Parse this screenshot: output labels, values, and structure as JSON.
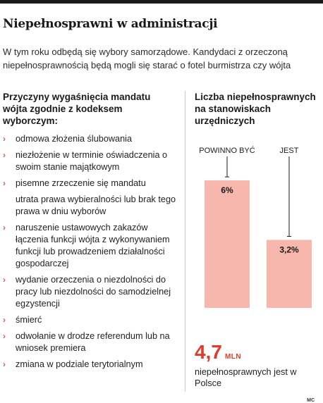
{
  "header": {
    "title": "Niepełnosprawni w administracji",
    "lead": "W tym roku odbędą się wybory samorządowe. Kandydaci z orzeczoną niepełnosprawnością będą mogli się starać o fotel burmistrza czy wójta"
  },
  "reasons": {
    "heading": "Przyczyny wygaśnięcia mandatu wójta zgodnie z kodeksem wyborczym:",
    "items": [
      {
        "text": "odmowa złożenia ślubowania",
        "bullet": true
      },
      {
        "text": "niezłożenie w terminie oświadczenia o swoim stanie majątkowym",
        "bullet": true
      },
      {
        "text": "pisemne zrzeczenie się mandatu",
        "bullet": true
      },
      {
        "text": "utrata prawa wybieralności lub brak tego prawa w dniu wyborów",
        "bullet": false
      },
      {
        "text": "naruszenie ustawowych zakazów łączenia funkcji wójta z wykonywaniem funkcji lub prowadzeniem działalności gospodarczej",
        "bullet": true
      },
      {
        "text": "wydanie orzeczenia o niezdolności do pracy lub niezdolności do samodzielnej egzystencji",
        "bullet": true
      },
      {
        "text": "śmierć",
        "bullet": true
      },
      {
        "text": "odwołanie w drodze referendum lub na wniosek premiera",
        "bullet": true
      },
      {
        "text": "zmiana w podziale terytorialnym",
        "bullet": true
      }
    ]
  },
  "chart_data": {
    "type": "bar",
    "title": "Liczba niepełnosprawnych na stanowiskach urzędniczych",
    "categories": [
      "POWINNO BYĆ",
      "JEST"
    ],
    "values": [
      6,
      3.2
    ],
    "value_labels": [
      "6%",
      "3,2%"
    ],
    "unit": "%",
    "ylim": [
      0,
      6.5
    ],
    "bar_color": "#f7b7ac",
    "label_color": "#1a1a1a",
    "grid": false
  },
  "stat": {
    "value": "4,7",
    "unit": "MLN",
    "caption": "niepełnosprawnych jest w Polsce",
    "color": "#e23a2c"
  },
  "credit": "MC",
  "icons": {
    "bullet": "chevron-right-icon"
  }
}
